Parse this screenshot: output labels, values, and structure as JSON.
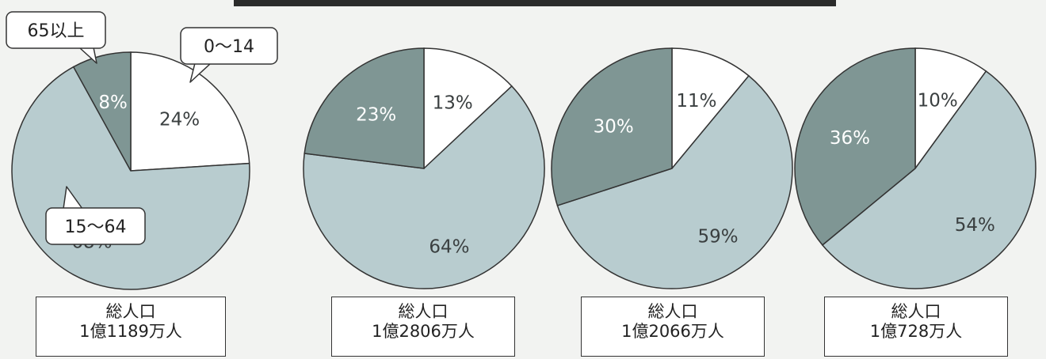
{
  "colors": {
    "young": "#ffffff",
    "working": "#b8cccf",
    "elderly": "#7f9694",
    "outline": "#333333"
  },
  "callouts": {
    "elderly": "65以上",
    "young": "0～14",
    "working": "15～64"
  },
  "chart_data": [
    {
      "type": "pie",
      "categories": [
        "0～14",
        "15～64",
        "65以上"
      ],
      "values": [
        24,
        68,
        8
      ],
      "labels": [
        "24%",
        "68%",
        "8%"
      ],
      "total_label": "総人口",
      "total_value": "1億1189万人"
    },
    {
      "type": "pie",
      "categories": [
        "0～14",
        "15～64",
        "65以上"
      ],
      "values": [
        13,
        64,
        23
      ],
      "labels": [
        "13%",
        "64%",
        "23%"
      ],
      "total_label": "総人口",
      "total_value": "1億2806万人"
    },
    {
      "type": "pie",
      "categories": [
        "0～14",
        "15～64",
        "65以上"
      ],
      "values": [
        11,
        59,
        30
      ],
      "labels": [
        "11%",
        "59%",
        "30%"
      ],
      "total_label": "総人口",
      "total_value": "1億2066万人"
    },
    {
      "type": "pie",
      "categories": [
        "0～14",
        "15～64",
        "65以上"
      ],
      "values": [
        10,
        54,
        36
      ],
      "labels": [
        "10%",
        "54%",
        "36%"
      ],
      "total_label": "総人口",
      "total_value": "1億728万人"
    }
  ]
}
